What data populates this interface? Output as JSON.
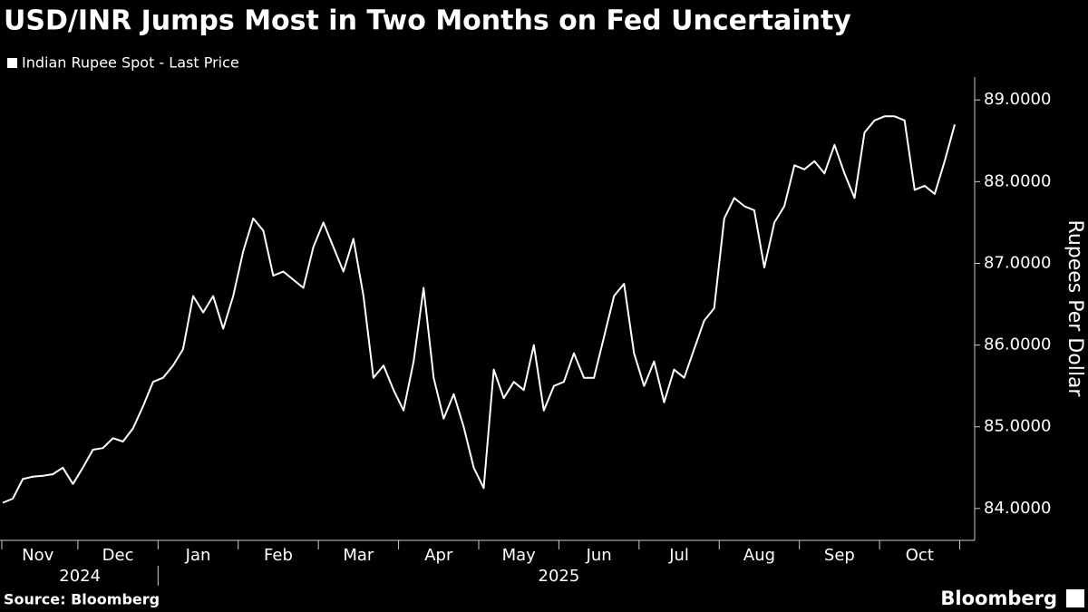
{
  "chart_data": {
    "type": "line",
    "title": "USD/INR Jumps Most in Two Months on Fed Uncertainty",
    "y_label": "Rupees Per Dollar",
    "source": "Source: Bloomberg",
    "brand": "Bloomberg",
    "categories": [
      null,
      null,
      null,
      "Nov",
      null,
      null,
      null,
      null,
      null,
      null,
      null,
      "Dec",
      null,
      null,
      null,
      null,
      null,
      null,
      null,
      "Jan",
      null,
      null,
      null,
      null,
      null,
      null,
      null,
      "Feb",
      null,
      null,
      null,
      null,
      null,
      null,
      null,
      "Mar",
      null,
      null,
      null,
      null,
      null,
      null,
      null,
      "Apr",
      null,
      null,
      null,
      null,
      null,
      null,
      null,
      "May",
      null,
      null,
      null,
      null,
      null,
      null,
      null,
      "Jun",
      null,
      null,
      null,
      null,
      null,
      null,
      null,
      "Jul",
      null,
      null,
      null,
      null,
      null,
      null,
      null,
      "Aug",
      null,
      null,
      null,
      null,
      null,
      null,
      null,
      "Sep",
      null,
      null,
      null,
      null,
      null,
      null,
      null,
      "Oct",
      null,
      null,
      null,
      null
    ],
    "years": [
      "2024",
      "2025"
    ],
    "series": [
      {
        "name": "Indian Rupee Spot - Last Price",
        "color": "#ffffff",
        "values": [
          84.07,
          84.12,
          84.36,
          84.39,
          84.4,
          84.42,
          84.5,
          84.3,
          84.5,
          84.72,
          84.74,
          84.86,
          84.82,
          84.98,
          85.25,
          85.55,
          85.6,
          85.75,
          85.95,
          86.6,
          86.4,
          86.6,
          86.2,
          86.6,
          87.15,
          87.55,
          87.4,
          86.85,
          86.9,
          86.8,
          86.7,
          87.2,
          87.5,
          87.2,
          86.9,
          87.3,
          86.6,
          85.6,
          85.75,
          85.45,
          85.2,
          85.8,
          86.7,
          85.6,
          85.1,
          85.4,
          85.0,
          84.5,
          84.25,
          85.7,
          85.35,
          85.55,
          85.45,
          86.0,
          85.2,
          85.5,
          85.55,
          85.9,
          85.6,
          85.6,
          86.1,
          86.6,
          86.75,
          85.9,
          85.5,
          85.8,
          85.3,
          85.7,
          85.6,
          85.95,
          86.3,
          86.45,
          87.55,
          87.8,
          87.7,
          87.65,
          86.95,
          87.5,
          87.7,
          88.2,
          88.15,
          88.25,
          88.1,
          88.45,
          88.1,
          87.8,
          88.6,
          88.75,
          88.8,
          88.8,
          88.75,
          87.9,
          87.95,
          87.85,
          88.25,
          88.7
        ]
      }
    ],
    "ylim": [
      83.61,
      89.28
    ],
    "yticks": [
      {
        "value": 84,
        "label": "84.0000"
      },
      {
        "value": 85,
        "label": "85.0000"
      },
      {
        "value": 86,
        "label": "86.0000"
      },
      {
        "value": 87,
        "label": "87.0000"
      },
      {
        "value": 88,
        "label": "88.0000"
      },
      {
        "value": 89,
        "label": "89.0000"
      }
    ],
    "grid": false
  }
}
